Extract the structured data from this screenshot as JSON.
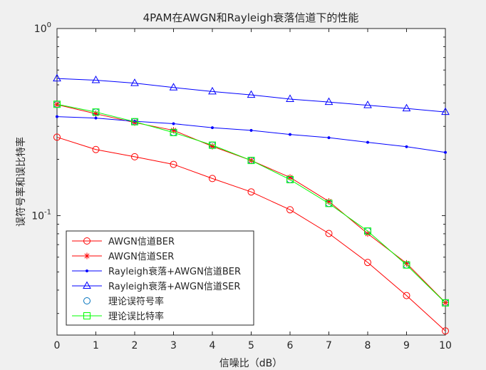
{
  "chart_data": {
    "type": "line",
    "title": "4PAM在AWGN和Rayleigh衰落信道下的性能",
    "xlabel": "信噪比（dB）",
    "ylabel": "误符号率和误比特率",
    "xlim": [
      0,
      10
    ],
    "ylim": [
      0.023,
      1
    ],
    "yscale": "log",
    "grid": false,
    "legend_position": "bottom-left",
    "x": [
      0,
      1,
      2,
      3,
      4,
      5,
      6,
      7,
      8,
      9,
      10
    ],
    "x_ticks": [
      "0",
      "1",
      "2",
      "3",
      "4",
      "5",
      "6",
      "7",
      "8",
      "9",
      "10"
    ],
    "y_ticks": [
      {
        "base": "10",
        "exp": "0",
        "value": 1
      },
      {
        "base": "10",
        "exp": "-1",
        "value": 0.1
      }
    ],
    "series": [
      {
        "name": "AWGN信道BER",
        "color": "#ff0000",
        "marker": "circle",
        "line": true,
        "values": [
          0.2626,
          0.2256,
          0.2064,
          0.1879,
          0.1579,
          0.1339,
          0.1075,
          0.0803,
          0.0562,
          0.0374,
          0.0242
        ]
      },
      {
        "name": "AWGN信道SER",
        "color": "#ff0000",
        "marker": "star",
        "line": true,
        "values": [
          0.3921,
          0.3503,
          0.3143,
          0.2857,
          0.2347,
          0.1972,
          0.1601,
          0.1191,
          0.0801,
          0.0556,
          0.0343
        ]
      },
      {
        "name": "Rayleigh衰落+AWGN信道BER",
        "color": "#0000ff",
        "marker": "dot",
        "line": true,
        "values": [
          0.3382,
          0.3322,
          0.3193,
          0.31,
          0.2951,
          0.2855,
          0.2715,
          0.2609,
          0.2465,
          0.2335,
          0.2178
        ]
      },
      {
        "name": "Rayleigh衰落+AWGN信道SER",
        "color": "#0000ff",
        "marker": "triangle",
        "line": true,
        "values": [
          0.5404,
          0.5295,
          0.5106,
          0.4838,
          0.4605,
          0.4418,
          0.4198,
          0.4045,
          0.3889,
          0.3738,
          0.3579
        ]
      },
      {
        "name": "理论误符号率",
        "color": "#0072bd",
        "marker": "circle",
        "line": false,
        "values": [
          0.3937,
          0.3577,
          0.3177,
          0.2782,
          0.238,
          0.1972,
          0.1558,
          0.1162,
          0.0827,
          0.0545,
          0.0342
        ]
      },
      {
        "name": "理论误比特率",
        "color": "#00ff00",
        "marker": "square",
        "line": true,
        "values": [
          0.3937,
          0.3577,
          0.3177,
          0.2782,
          0.238,
          0.1972,
          0.1558,
          0.1162,
          0.0827,
          0.0545,
          0.0342
        ]
      }
    ]
  }
}
